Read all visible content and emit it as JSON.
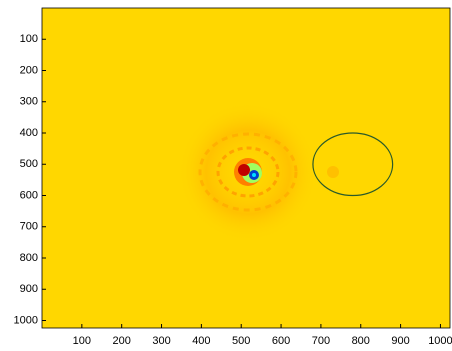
{
  "chart_data": {
    "type": "image",
    "background_color": "#ffd700",
    "xlim": [
      0,
      1024
    ],
    "ylim": [
      0,
      1024
    ],
    "y_reversed": true,
    "xticks": [
      100,
      200,
      300,
      400,
      500,
      600,
      700,
      800,
      900,
      1000
    ],
    "yticks": [
      100,
      200,
      300,
      400,
      500,
      600,
      700,
      800,
      900,
      1000
    ],
    "circle": {
      "cx": 780,
      "cy": 500,
      "r": 100,
      "color": "#2a5a2a"
    }
  }
}
